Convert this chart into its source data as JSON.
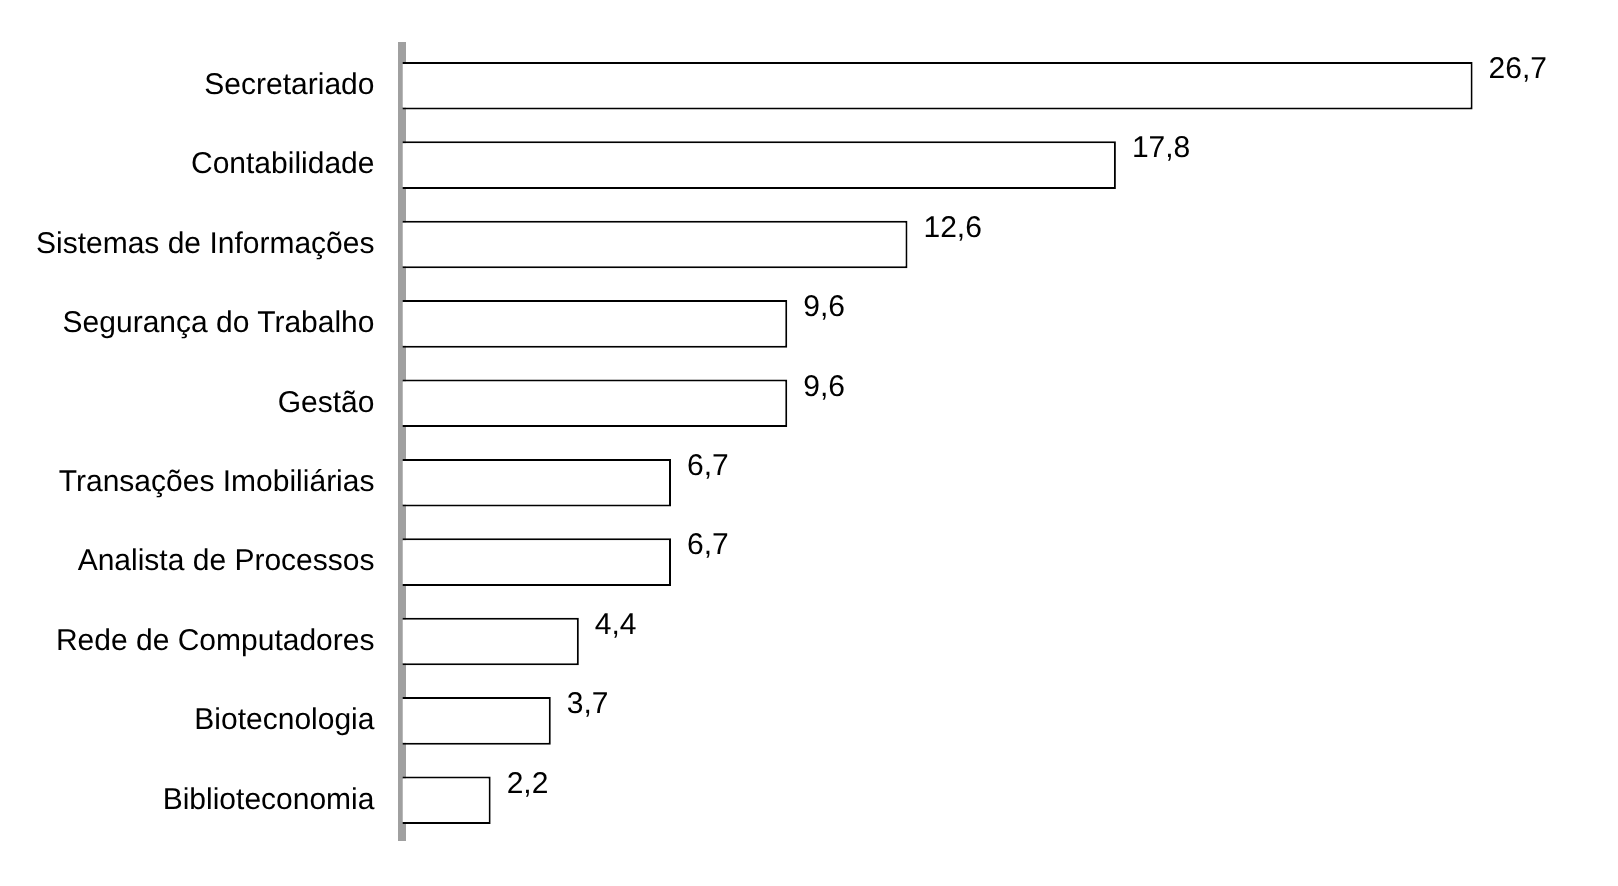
{
  "chart_data": {
    "type": "bar",
    "orientation": "horizontal",
    "categories": [
      "Secretariado",
      "Contabilidade",
      "Sistemas de Informações",
      "Segurança do Trabalho",
      "Gestão",
      "Transações Imobiliárias",
      "Analista de Processos",
      "Rede de Computadores",
      "Biotecnologia",
      "Biblioteconomia"
    ],
    "values": [
      26.7,
      17.8,
      12.6,
      9.6,
      9.6,
      6.7,
      6.7,
      4.4,
      3.7,
      2.2
    ],
    "value_labels": [
      "26,7",
      "17,8",
      "12,6",
      "9,6",
      "9,6",
      "6,7",
      "6,7",
      "4,4",
      "3,7",
      "2,2"
    ],
    "color": "#ffffff"
  }
}
